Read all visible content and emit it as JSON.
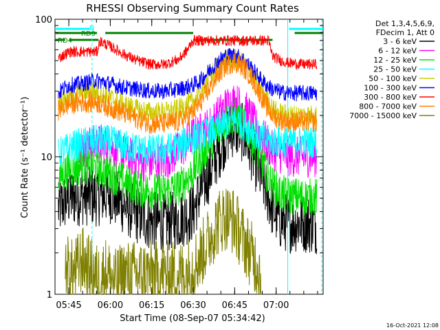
{
  "chart_data": {
    "type": "line",
    "title": "RHESSI Observing Summary Count Rates",
    "xlabel": "Start Time (08-Sep-07 05:34:42)",
    "ylabel": "Count Rate (s⁻¹ detector⁻¹)",
    "y_scale": "log",
    "ylim": [
      1,
      100
    ],
    "xlim_minutes_after_start": [
      5.3,
      102.3
    ],
    "x_ticks": [
      {
        "label": "05:45",
        "minute": 10.3
      },
      {
        "label": "06:00",
        "minute": 25.3
      },
      {
        "label": "06:15",
        "minute": 40.3
      },
      {
        "label": "06:30",
        "minute": 55.3
      },
      {
        "label": "06:45",
        "minute": 70.3
      },
      {
        "label": "07:00",
        "minute": 85.3
      }
    ],
    "y_ticks": [
      {
        "label": "1",
        "value": 1
      },
      {
        "label": "10",
        "value": 10
      },
      {
        "label": "100",
        "value": 100
      }
    ],
    "legend": {
      "placement": "right",
      "header": [
        "Det 1,3,4,5,6,9,",
        "FDecim 1, Att 0"
      ],
      "entries": [
        {
          "label": "3 - 6 keV",
          "color": "#000000"
        },
        {
          "label": "6 - 12 keV",
          "color": "#ff00ff"
        },
        {
          "label": "12 - 25 keV",
          "color": "#00e000"
        },
        {
          "label": "25 - 50 keV",
          "color": "#00ffff"
        },
        {
          "label": "50 - 100 keV",
          "color": "#cccc00"
        },
        {
          "label": "100 - 300 keV",
          "color": "#0000ff"
        },
        {
          "label": "300 - 800 keV",
          "color": "#ff0000"
        },
        {
          "label": "800 - 7000 keV",
          "color": "#ff8000"
        },
        {
          "label": "7000 - 15000 keV",
          "color": "#808000"
        }
      ]
    },
    "series": [
      {
        "name": "3 - 6 keV",
        "color": "#000000",
        "x": [
          6.5,
          10,
          15,
          20,
          25,
          30,
          35,
          40,
          45,
          50,
          55,
          58,
          61,
          64,
          67,
          70,
          73,
          76,
          79,
          82,
          84,
          87,
          90,
          95,
          100
        ],
        "y": [
          4.2,
          5.0,
          5.2,
          5.1,
          5.4,
          4.5,
          3.8,
          3.4,
          3.3,
          3.5,
          3.9,
          5.6,
          7.5,
          10.5,
          14,
          16.5,
          15,
          11.5,
          8,
          5.5,
          4.2,
          3.4,
          3.3,
          3.3,
          3.2
        ]
      },
      {
        "name": "6 - 12 keV",
        "color": "#ff00ff",
        "x": [
          14,
          18,
          22,
          25,
          30,
          35,
          40,
          45,
          50,
          55,
          58,
          61,
          64,
          67,
          70,
          73,
          76,
          79,
          82,
          84,
          87,
          90,
          95,
          100
        ],
        "y": [
          11,
          12,
          12.5,
          12,
          10.5,
          9.5,
          9,
          9.5,
          11,
          14,
          15,
          16.5,
          19.5,
          23,
          25,
          23,
          19.5,
          15,
          12.5,
          11,
          10.5,
          10,
          10,
          10
        ]
      },
      {
        "name": "12 - 25 keV",
        "color": "#00e000",
        "x": [
          6.5,
          10,
          15,
          20,
          25,
          30,
          35,
          40,
          45,
          50,
          55,
          58,
          61,
          64,
          67,
          70,
          73,
          76,
          79,
          82,
          84,
          87,
          90,
          95,
          100
        ],
        "y": [
          7,
          8,
          8.5,
          8.4,
          7.6,
          6.6,
          6,
          5.6,
          5.6,
          6,
          7.6,
          9.8,
          12,
          15,
          18,
          20,
          18,
          14.5,
          10.5,
          7.5,
          6.2,
          5.4,
          5.2,
          5.1,
          5.1
        ]
      },
      {
        "name": "25 - 50 keV",
        "color": "#00ffff",
        "x": [
          6.5,
          10,
          15,
          20,
          25,
          30,
          35,
          40,
          45,
          50,
          55,
          58,
          61,
          64,
          67,
          70,
          73,
          76,
          79,
          82,
          84,
          87,
          90,
          95,
          100
        ],
        "y": [
          10.5,
          11.5,
          12.5,
          13,
          13,
          12,
          11.5,
          11,
          11.2,
          12,
          13.5,
          14,
          15,
          16,
          17.5,
          18.5,
          17.5,
          16,
          14,
          13,
          13,
          12.8,
          12.8,
          12.8,
          12.8
        ]
      },
      {
        "name": "50 - 100 keV",
        "color": "#cccc00",
        "x": [
          6.5,
          10,
          15,
          20,
          25,
          30,
          35,
          40,
          45,
          50,
          55,
          58,
          61,
          64,
          67,
          70,
          73,
          76,
          79,
          82,
          84,
          87,
          90,
          95,
          100
        ],
        "y": [
          25,
          27,
          30,
          30,
          27,
          24,
          22,
          21,
          21,
          22,
          25,
          30,
          38,
          45,
          50,
          51,
          48,
          42,
          33,
          26,
          22,
          20.5,
          20,
          20,
          20
        ]
      },
      {
        "name": "100 - 300 keV",
        "color": "#0000ff",
        "x": [
          6.5,
          10,
          15,
          20,
          25,
          30,
          35,
          40,
          45,
          50,
          55,
          58,
          61,
          64,
          67,
          70,
          73,
          76,
          79,
          82,
          84,
          87,
          90,
          95,
          100
        ],
        "y": [
          29,
          33,
          34,
          36,
          34,
          32,
          31,
          30,
          30,
          31,
          33,
          36,
          42,
          49,
          54,
          55,
          52,
          45,
          38,
          33,
          31,
          29.5,
          29,
          29,
          29
        ]
      },
      {
        "name": "300 - 800 keV",
        "color": "#ff0000",
        "x": [
          6.5,
          8.5,
          10.5,
          20.5,
          21.5,
          25,
          30,
          35,
          40,
          45,
          50,
          53,
          55.2,
          82.5,
          84,
          87,
          90,
          95,
          100
        ],
        "y": [
          52,
          55,
          58,
          58,
          69,
          64,
          56,
          50,
          47,
          47,
          51,
          59,
          70,
          70,
          54,
          50,
          48,
          47,
          47
        ]
      },
      {
        "name": "800 - 7000 keV",
        "color": "#ff8000",
        "x": [
          6.5,
          10,
          15,
          20,
          25,
          30,
          35,
          40,
          45,
          50,
          55,
          58,
          61,
          64,
          67,
          70,
          73,
          76,
          79,
          82,
          84,
          87,
          90,
          95,
          100
        ],
        "y": [
          22,
          24,
          25,
          25,
          23,
          21,
          19,
          17.5,
          17.5,
          18,
          21,
          25,
          31,
          39,
          46,
          49,
          46,
          39,
          30,
          23,
          20,
          18.5,
          18,
          18,
          18
        ]
      },
      {
        "name": "7000 - 15000 keV",
        "color": "#808000",
        "x": [
          9,
          12,
          15,
          18,
          21,
          24,
          27,
          30,
          52,
          55,
          58,
          61,
          64,
          67,
          70,
          73,
          76,
          79,
          80
        ],
        "y": [
          1.6,
          1.4,
          1.8,
          1.5,
          1.3,
          1.5,
          1.2,
          1.4,
          1.4,
          1.6,
          1.9,
          2.5,
          3.3,
          3.7,
          3.4,
          2.6,
          2.0,
          1.6,
          1.3
        ]
      }
    ],
    "attenuator_bars": [
      {
        "label": "",
        "color": "#00ffff",
        "row": 1,
        "segments": [
          [
            5.3,
            18
          ],
          [
            90,
            102.3
          ]
        ]
      },
      {
        "label": "N",
        "color": "#00ffff",
        "row": 0,
        "segments": [
          [
            19.2,
            19.2
          ]
        ]
      },
      {
        "label": "RD0",
        "color": "#008000",
        "row": 2,
        "segments": [
          [
            5.3,
            20.5
          ],
          [
            23.5,
            55.3
          ],
          [
            92,
            102.3
          ]
        ]
      },
      {
        "label": "RD4",
        "color": "#008000",
        "row": 3,
        "segments": [
          [
            5.3,
            9
          ],
          [
            10.5,
            21
          ],
          [
            55.3,
            84
          ]
        ]
      }
    ],
    "vertical_markers": [
      {
        "minute": 18.7,
        "color": "#00ffff",
        "style": "dashed"
      },
      {
        "minute": 89.5,
        "color": "#00ffff",
        "style": "solid"
      },
      {
        "minute": 101.8,
        "color": "#00ffff",
        "style": "dashed"
      }
    ],
    "grid": false
  },
  "timestamp": "16-Oct-2021 12:08"
}
